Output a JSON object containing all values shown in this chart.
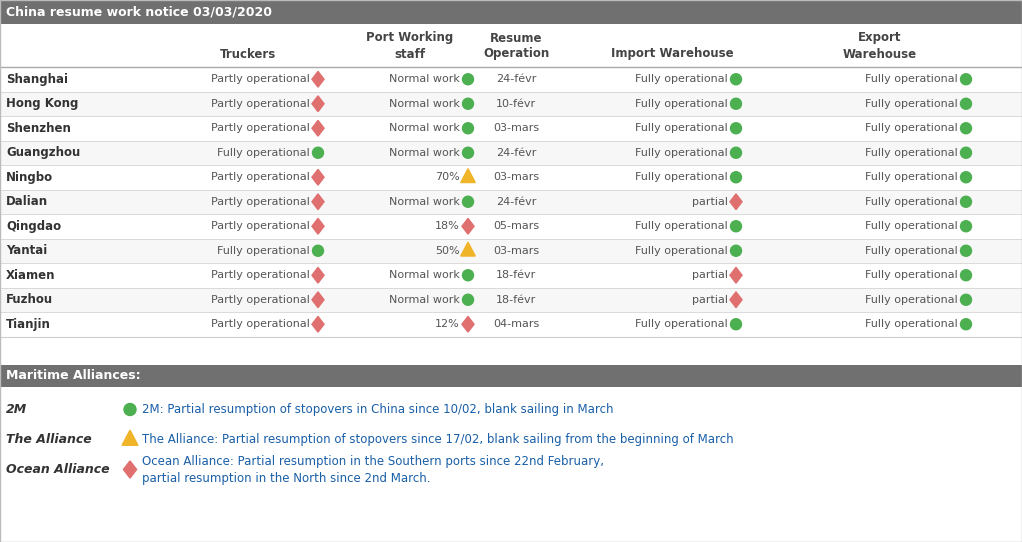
{
  "title": "China resume work notice 03/03/2020",
  "rows": [
    {
      "city": "Shanghai",
      "truckers_text": "Partly operational",
      "truckers_icon": "diamond_red",
      "port_text": "Normal work",
      "port_icon": "circle_green",
      "resume": "24-févr",
      "import_text": "Fully operational",
      "import_icon": "circle_green",
      "export_text": "Fully operational",
      "export_icon": "circle_green"
    },
    {
      "city": "Hong Kong",
      "truckers_text": "Partly operational",
      "truckers_icon": "diamond_red",
      "port_text": "Normal work",
      "port_icon": "circle_green",
      "resume": "10-févr",
      "import_text": "Fully operational",
      "import_icon": "circle_green",
      "export_text": "Fully operational",
      "export_icon": "circle_green"
    },
    {
      "city": "Shenzhen",
      "truckers_text": "Partly operational",
      "truckers_icon": "diamond_red",
      "port_text": "Normal work",
      "port_icon": "circle_green",
      "resume": "03-mars",
      "import_text": "Fully operational",
      "import_icon": "circle_green",
      "export_text": "Fully operational",
      "export_icon": "circle_green"
    },
    {
      "city": "Guangzhou",
      "truckers_text": "Fully operational",
      "truckers_icon": "circle_green",
      "port_text": "Normal work",
      "port_icon": "circle_green",
      "resume": "24-févr",
      "import_text": "Fully operational",
      "import_icon": "circle_green",
      "export_text": "Fully operational",
      "export_icon": "circle_green"
    },
    {
      "city": "Ningbo",
      "truckers_text": "Partly operational",
      "truckers_icon": "diamond_red",
      "port_text": "70%",
      "port_icon": "triangle_yellow",
      "resume": "03-mars",
      "import_text": "Fully operational",
      "import_icon": "circle_green",
      "export_text": "Fully operational",
      "export_icon": "circle_green"
    },
    {
      "city": "Dalian",
      "truckers_text": "Partly operational",
      "truckers_icon": "diamond_red",
      "port_text": "Normal work",
      "port_icon": "circle_green",
      "resume": "24-févr",
      "import_text": "partial",
      "import_icon": "diamond_red",
      "export_text": "Fully operational",
      "export_icon": "circle_green"
    },
    {
      "city": "Qingdao",
      "truckers_text": "Partly operational",
      "truckers_icon": "diamond_red",
      "port_text": "18%",
      "port_icon": "diamond_red",
      "resume": "05-mars",
      "import_text": "Fully operational",
      "import_icon": "circle_green",
      "export_text": "Fully operational",
      "export_icon": "circle_green"
    },
    {
      "city": "Yantai",
      "truckers_text": "Fully operational",
      "truckers_icon": "circle_green",
      "port_text": "50%",
      "port_icon": "triangle_yellow",
      "resume": "03-mars",
      "import_text": "Fully operational",
      "import_icon": "circle_green",
      "export_text": "Fully operational",
      "export_icon": "circle_green"
    },
    {
      "city": "Xiamen",
      "truckers_text": "Partly operational",
      "truckers_icon": "diamond_red",
      "port_text": "Normal work",
      "port_icon": "circle_green",
      "resume": "18-févr",
      "import_text": "partial",
      "import_icon": "diamond_red",
      "export_text": "Fully operational",
      "export_icon": "circle_green"
    },
    {
      "city": "Fuzhou",
      "truckers_text": "Partly operational",
      "truckers_icon": "diamond_red",
      "port_text": "Normal work",
      "port_icon": "circle_green",
      "resume": "18-févr",
      "import_text": "partial",
      "import_icon": "diamond_red",
      "export_text": "Fully operational",
      "export_icon": "circle_green"
    },
    {
      "city": "Tianjin",
      "truckers_text": "Partly operational",
      "truckers_icon": "diamond_red",
      "port_text": "12%",
      "port_icon": "diamond_red",
      "resume": "04-mars",
      "import_text": "Fully operational",
      "import_icon": "circle_green",
      "export_text": "Fully operational",
      "export_icon": "circle_green"
    }
  ],
  "alliances": [
    {
      "name": "2M",
      "icon": "circle_green",
      "text1": "2M: Partial resumption of stopovers in China since 10/02, blank sailing in March",
      "text2": ""
    },
    {
      "name": "The Alliance",
      "icon": "triangle_yellow",
      "text1": "The Alliance: Partial resumption of stopovers since 17/02, blank sailing from the beginning of March",
      "text2": ""
    },
    {
      "name": "Ocean Alliance",
      "icon": "diamond_red",
      "text1": "Ocean Alliance: Partial resumption in the Southern ports since 22nd February,",
      "text2": "partial resumption in the North since 2nd March."
    }
  ],
  "color_green": "#4caf50",
  "color_red": "#e07070",
  "color_yellow": "#f0b429",
  "text_color_main": "#555555",
  "text_color_city": "#333333",
  "text_color_link": "#1a5fa8",
  "section_bg": "#707070",
  "header_text_color": "#ffffff",
  "row_bg_white": "#ffffff",
  "row_bg_light": "#f7f7f7",
  "table_border": "#cccccc",
  "fig_w": 10.22,
  "fig_h": 5.42,
  "dpi": 100
}
